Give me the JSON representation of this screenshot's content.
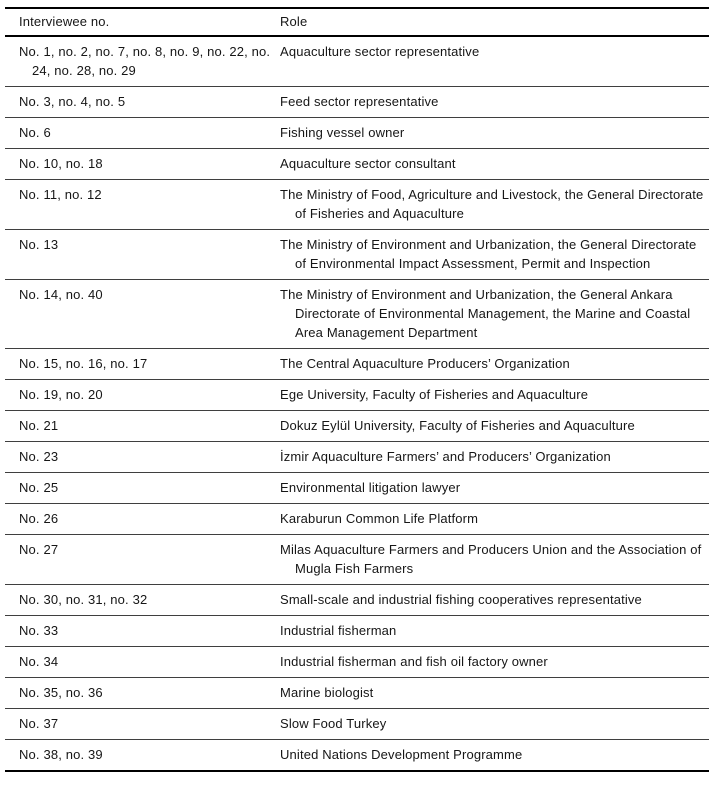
{
  "table": {
    "header": {
      "col1": "Interviewee no.",
      "col2": "Role"
    },
    "rows": [
      {
        "interviewees": "No. 1, no. 2, no. 7, no. 8, no. 9, no. 22, no. 24, no. 28, no. 29",
        "role": "Aquaculture sector representative"
      },
      {
        "interviewees": "No. 3, no. 4, no. 5",
        "role": "Feed sector representative"
      },
      {
        "interviewees": "No. 6",
        "role": "Fishing vessel owner"
      },
      {
        "interviewees": "No. 10, no. 18",
        "role": "Aquaculture sector consultant"
      },
      {
        "interviewees": "No. 11, no. 12",
        "role": "The Ministry of Food, Agriculture and Livestock, the General Directorate of Fisheries and Aquaculture"
      },
      {
        "interviewees": "No. 13",
        "role": "The Ministry of Environment and Urbanization, the General Directorate of Environmental Impact Assessment, Permit and Inspection"
      },
      {
        "interviewees": "No. 14, no. 40",
        "role": "The Ministry of Environment and Urbanization, the General Ankara Directorate of Environmental Management, the Marine and Coastal Area Management Department"
      },
      {
        "interviewees": "No. 15, no. 16, no. 17",
        "role": "The Central Aquaculture Producers’ Organization"
      },
      {
        "interviewees": "No. 19, no. 20",
        "role": "Ege University, Faculty of Fisheries and Aquaculture"
      },
      {
        "interviewees": "No. 21",
        "role": "Dokuz Eylül University, Faculty of Fisheries and Aquaculture"
      },
      {
        "interviewees": "No. 23",
        "role": "İzmir Aquaculture Farmers’ and Producers’ Organization"
      },
      {
        "interviewees": "No. 25",
        "role": "Environmental litigation lawyer"
      },
      {
        "interviewees": "No. 26",
        "role": "Karaburun Common Life Platform"
      },
      {
        "interviewees": "No. 27",
        "role": "Milas Aquaculture Farmers and Producers Union and the Association of Mugla Fish Farmers"
      },
      {
        "interviewees": "No. 30, no. 31, no. 32",
        "role": "Small-scale and industrial fishing cooperatives representative"
      },
      {
        "interviewees": "No. 33",
        "role": "Industrial fisherman"
      },
      {
        "interviewees": "No. 34",
        "role": "Industrial fisherman and fish oil factory owner"
      },
      {
        "interviewees": "No. 35, no. 36",
        "role": "Marine biologist"
      },
      {
        "interviewees": "No. 37",
        "role": "Slow Food Turkey"
      },
      {
        "interviewees": "No. 38, no. 39",
        "role": "United Nations Development Programme"
      }
    ]
  }
}
